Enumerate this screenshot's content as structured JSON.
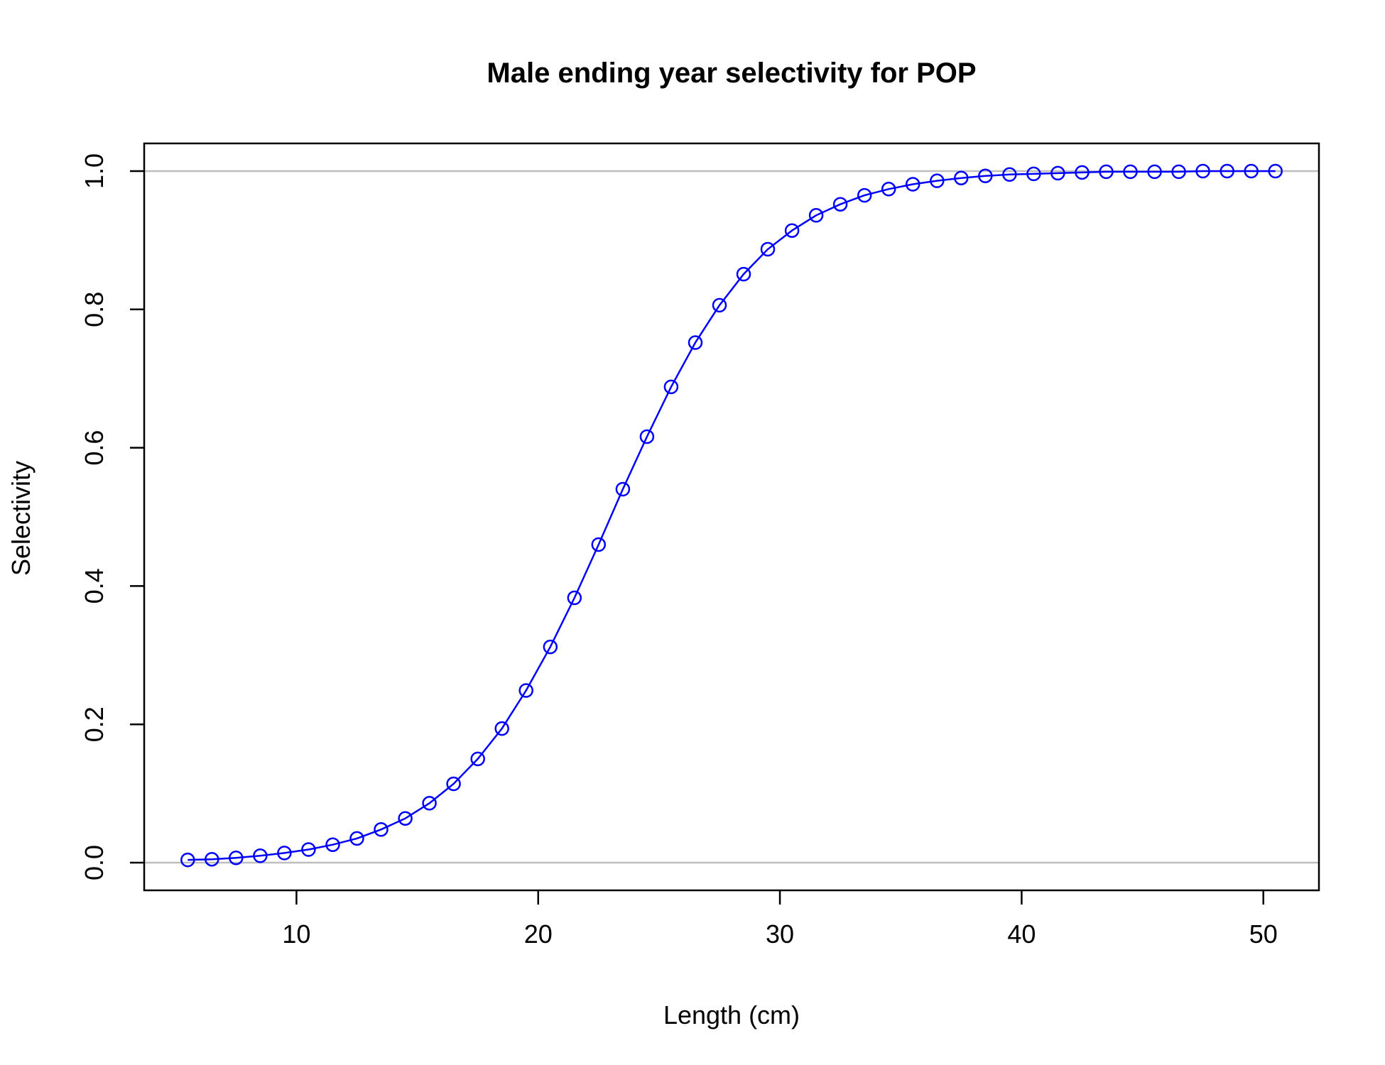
{
  "chart_data": {
    "type": "line",
    "title": "Male ending year selectivity for POP",
    "xlabel": "Length (cm)",
    "ylabel": "Selectivity",
    "xlim": [
      3.7,
      52.3
    ],
    "ylim": [
      -0.04,
      1.04
    ],
    "xticks": [
      10,
      20,
      30,
      40,
      50
    ],
    "xtick_labels": [
      "10",
      "20",
      "30",
      "40",
      "50"
    ],
    "yticks": [
      0.0,
      0.2,
      0.4,
      0.6,
      0.8,
      1.0
    ],
    "ytick_labels": [
      "0.0",
      "0.2",
      "0.4",
      "0.6",
      "0.8",
      "1.0"
    ],
    "reference_lines": [
      0,
      1
    ],
    "grid": false,
    "legend": "none",
    "colors": {
      "series": "#0000ff",
      "reference": "#bebebe",
      "axes": "#000000"
    },
    "series": [
      {
        "x": [
          5.5,
          6.5,
          7.5,
          8.5,
          9.5,
          10.5,
          11.5,
          12.5,
          13.5,
          14.5,
          15.5,
          16.5,
          17.5,
          18.5,
          19.5,
          20.5,
          21.5,
          22.5,
          23.5,
          24.5,
          25.5,
          26.5,
          27.5,
          28.5,
          29.5,
          30.5,
          31.5,
          32.5,
          33.5,
          34.5,
          35.5,
          36.5,
          37.5,
          38.5,
          39.5,
          40.5,
          41.5,
          42.5,
          43.5,
          44.5,
          45.5,
          46.5,
          47.5,
          48.5,
          49.5,
          50.5
        ],
        "values": [
          0.004,
          0.005,
          0.007,
          0.01,
          0.014,
          0.019,
          0.026,
          0.035,
          0.048,
          0.064,
          0.086,
          0.114,
          0.15,
          0.194,
          0.249,
          0.312,
          0.383,
          0.46,
          0.54,
          0.616,
          0.688,
          0.752,
          0.806,
          0.851,
          0.887,
          0.914,
          0.936,
          0.952,
          0.965,
          0.974,
          0.981,
          0.986,
          0.99,
          0.993,
          0.995,
          0.996,
          0.997,
          0.998,
          0.999,
          0.999,
          0.999,
          0.999,
          1.0,
          1.0,
          1.0,
          1.0
        ]
      }
    ]
  }
}
